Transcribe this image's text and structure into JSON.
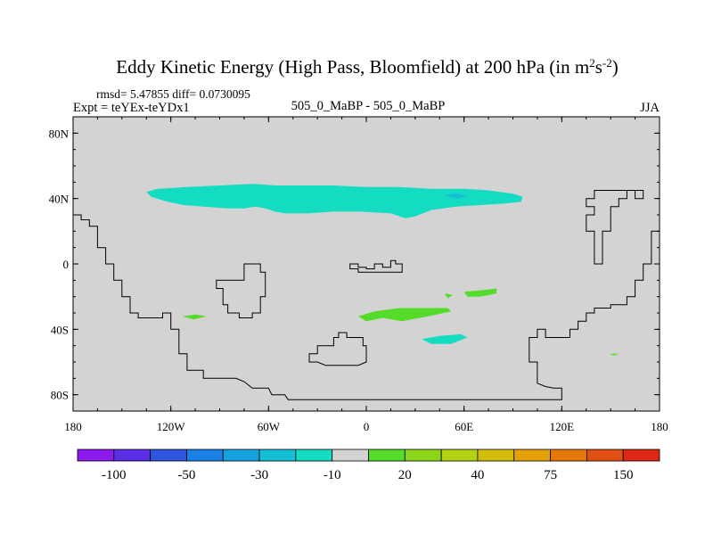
{
  "chart_data": {
    "type": "heatmap",
    "title": {
      "main": "Eddy Kinetic Energy (High Pass, Bloomfield) at 200 hPa (in m",
      "units_a": "2",
      "units_mid": "s",
      "units_b": "-2",
      "close": ")"
    },
    "stats_line": "rmsd= 5.47855 diff= 0.0730095",
    "experiment": "Expt = teYEx-teYDx1",
    "comparison": "505_0_MaBP - 505_0_MaBP",
    "season": "JJA",
    "projection": "cylindrical-equidistant",
    "xlim": [
      -180,
      180
    ],
    "ylim": [
      -90,
      90
    ],
    "x_ticks": [
      {
        "value": -180,
        "label": "180"
      },
      {
        "value": -120,
        "label": "120W"
      },
      {
        "value": -60,
        "label": "60W"
      },
      {
        "value": 0,
        "label": "0"
      },
      {
        "value": 60,
        "label": "60E"
      },
      {
        "value": 120,
        "label": "120E"
      },
      {
        "value": 180,
        "label": "180"
      }
    ],
    "y_ticks": [
      {
        "value": 80,
        "label": "80N"
      },
      {
        "value": 40,
        "label": "40N"
      },
      {
        "value": 0,
        "label": "0"
      },
      {
        "value": -40,
        "label": "40S"
      },
      {
        "value": -80,
        "label": "80S"
      }
    ],
    "background_color": "#d3d3d3",
    "colorbar": {
      "colors": [
        "#8c1aef",
        "#5a2de6",
        "#2d55e0",
        "#1a80e6",
        "#14a3e0",
        "#14bed6",
        "#14dcc3",
        "#d3d3d3",
        "#55dc28",
        "#8cd61a",
        "#b4d214",
        "#d2be0a",
        "#e6a00a",
        "#e6780a",
        "#e05014",
        "#dc2814"
      ],
      "labels": [
        {
          "boundary": 1,
          "text": "-100"
        },
        {
          "boundary": 3,
          "text": "-50"
        },
        {
          "boundary": 5,
          "text": "-30"
        },
        {
          "boundary": 7,
          "text": "-10"
        },
        {
          "boundary": 9,
          "text": "20"
        },
        {
          "boundary": 11,
          "text": "40"
        },
        {
          "boundary": 13,
          "text": "75"
        },
        {
          "boundary": 15,
          "text": "150"
        }
      ]
    },
    "anomaly_regions": [
      {
        "name": "northern-midlatitude-band",
        "bin": "-10 to -5",
        "color": "#14dcc3",
        "lonlat": [
          [
            -135,
            44
          ],
          [
            -128,
            46
          ],
          [
            -110,
            47
          ],
          [
            -90,
            48
          ],
          [
            -70,
            49
          ],
          [
            -55,
            48
          ],
          [
            -40,
            48
          ],
          [
            -20,
            48
          ],
          [
            0,
            47
          ],
          [
            20,
            47
          ],
          [
            40,
            46
          ],
          [
            60,
            46
          ],
          [
            75,
            45
          ],
          [
            90,
            43
          ],
          [
            96,
            41
          ],
          [
            95,
            38
          ],
          [
            85,
            37
          ],
          [
            70,
            36
          ],
          [
            55,
            35
          ],
          [
            40,
            33
          ],
          [
            30,
            29
          ],
          [
            24,
            28
          ],
          [
            15,
            31
          ],
          [
            -5,
            32
          ],
          [
            -20,
            32
          ],
          [
            -35,
            31
          ],
          [
            -50,
            31
          ],
          [
            -56,
            32
          ],
          [
            -62,
            34
          ],
          [
            -68,
            35
          ],
          [
            -75,
            34
          ],
          [
            -85,
            34
          ],
          [
            -100,
            35
          ],
          [
            -112,
            36
          ],
          [
            -122,
            38
          ],
          [
            -132,
            41
          ]
        ]
      },
      {
        "name": "northern-band-core",
        "bin": "-30 to -10",
        "color": "#14bed6",
        "lonlat": [
          [
            48,
            42
          ],
          [
            55,
            43
          ],
          [
            62,
            42
          ],
          [
            56,
            40
          ]
        ]
      },
      {
        "name": "south-atlantic-patch",
        "bin": "5 to 20",
        "color": "#55dc28",
        "lonlat": [
          [
            -5,
            -32
          ],
          [
            5,
            -29
          ],
          [
            20,
            -27
          ],
          [
            35,
            -27
          ],
          [
            50,
            -27
          ],
          [
            52,
            -29
          ],
          [
            38,
            -32
          ],
          [
            22,
            -35
          ],
          [
            10,
            -33
          ],
          [
            0,
            -35
          ]
        ]
      },
      {
        "name": "south-indian-patch",
        "bin": "5 to 20",
        "color": "#55dc28",
        "lonlat": [
          [
            60,
            -17
          ],
          [
            72,
            -16
          ],
          [
            80,
            -15
          ],
          [
            80,
            -18
          ],
          [
            70,
            -20
          ],
          [
            62,
            -20
          ]
        ]
      },
      {
        "name": "small-patch-near-50e",
        "bin": "5 to 20",
        "color": "#55dc28",
        "lonlat": [
          [
            48,
            -18
          ],
          [
            53,
            -19
          ],
          [
            50,
            -21
          ]
        ]
      },
      {
        "name": "south-pacific-patch",
        "bin": "5 to 20",
        "color": "#55dc28",
        "lonlat": [
          [
            -113,
            -32
          ],
          [
            -105,
            -31
          ],
          [
            -98,
            -32
          ],
          [
            -106,
            -34
          ]
        ]
      },
      {
        "name": "southern-ocean-patch",
        "bin": "-10 to -5",
        "color": "#14dcc3",
        "lonlat": [
          [
            34,
            -46
          ],
          [
            45,
            -44
          ],
          [
            58,
            -43
          ],
          [
            62,
            -45
          ],
          [
            52,
            -49
          ],
          [
            40,
            -49
          ]
        ]
      },
      {
        "name": "far-southeast-dot",
        "bin": "5 to 20",
        "color": "#55dc28",
        "lonlat": [
          [
            149,
            -55
          ],
          [
            155,
            -55
          ],
          [
            152,
            -56
          ]
        ]
      }
    ],
    "coastlines": [
      {
        "name": "west-continent-outline",
        "lonlat": [
          [
            -180,
            30
          ],
          [
            -175,
            30
          ],
          [
            -175,
            27
          ],
          [
            -170,
            27
          ],
          [
            -170,
            23
          ],
          [
            -165,
            23
          ],
          [
            -165,
            10
          ],
          [
            -160,
            10
          ],
          [
            -160,
            0
          ],
          [
            -155,
            0
          ],
          [
            -155,
            -10
          ],
          [
            -150,
            -10
          ],
          [
            -150,
            -20
          ],
          [
            -145,
            -20
          ],
          [
            -145,
            -30
          ],
          [
            -140,
            -30
          ],
          [
            -140,
            -33
          ],
          [
            -130,
            -33
          ],
          [
            -125,
            -33
          ],
          [
            -125,
            -30
          ],
          [
            -120,
            -30
          ],
          [
            -120,
            -40
          ],
          [
            -115,
            -40
          ],
          [
            -115,
            -55
          ],
          [
            -110,
            -55
          ],
          [
            -110,
            -65
          ],
          [
            -100,
            -65
          ],
          [
            -100,
            -70
          ],
          [
            -80,
            -70
          ],
          [
            -75,
            -72
          ],
          [
            -70,
            -76
          ],
          [
            -60,
            -76
          ],
          [
            -58,
            -80
          ],
          [
            -50,
            -80
          ],
          [
            -48,
            -83
          ],
          [
            0,
            -83
          ],
          [
            120,
            -83
          ],
          [
            120,
            -76
          ],
          [
            115,
            -76
          ],
          [
            110,
            -75
          ],
          [
            105,
            -73
          ],
          [
            105,
            -60
          ],
          [
            100,
            -60
          ],
          [
            100,
            -45
          ],
          [
            105,
            -45
          ],
          [
            105,
            -40
          ],
          [
            110,
            -40
          ],
          [
            110,
            -45
          ],
          [
            125,
            -45
          ],
          [
            125,
            -40
          ],
          [
            130,
            -40
          ],
          [
            130,
            -35
          ],
          [
            135,
            -35
          ],
          [
            135,
            -30
          ],
          [
            140,
            -30
          ],
          [
            140,
            -27
          ],
          [
            150,
            -27
          ],
          [
            150,
            -25
          ],
          [
            160,
            -25
          ],
          [
            160,
            -20
          ],
          [
            165,
            -20
          ],
          [
            165,
            -10
          ],
          [
            170,
            -10
          ],
          [
            170,
            0
          ],
          [
            175,
            0
          ],
          [
            175,
            20
          ],
          [
            180,
            20
          ]
        ]
      },
      {
        "name": "south-pacific-island-outline",
        "lonlat": [
          [
            -92,
            -10
          ],
          [
            -92,
            -15
          ],
          [
            -88,
            -15
          ],
          [
            -88,
            -25
          ],
          [
            -85,
            -25
          ],
          [
            -85,
            -30
          ],
          [
            -78,
            -30
          ],
          [
            -78,
            -33
          ],
          [
            -70,
            -33
          ],
          [
            -70,
            -30
          ],
          [
            -65,
            -30
          ],
          [
            -65,
            -20
          ],
          [
            -62,
            -20
          ],
          [
            -62,
            -5
          ],
          [
            -65,
            -5
          ],
          [
            -65,
            0
          ],
          [
            -75,
            0
          ],
          [
            -75,
            -10
          ]
        ]
      },
      {
        "name": "equatorial-small-outline",
        "lonlat": [
          [
            -10,
            0
          ],
          [
            -5,
            0
          ],
          [
            -5,
            -2
          ],
          [
            0,
            -2
          ],
          [
            0,
            -3
          ],
          [
            5,
            -3
          ],
          [
            5,
            0
          ],
          [
            10,
            0
          ],
          [
            10,
            -2
          ],
          [
            15,
            -2
          ],
          [
            15,
            2
          ],
          [
            18,
            2
          ],
          [
            18,
            0
          ],
          [
            22,
            0
          ],
          [
            22,
            -5
          ],
          [
            15,
            -5
          ],
          [
            10,
            -5
          ],
          [
            5,
            -5
          ],
          [
            0,
            -5
          ],
          [
            -5,
            -5
          ],
          [
            -5,
            -3
          ],
          [
            -10,
            -3
          ]
        ]
      },
      {
        "name": "south-atlantic-island-outline",
        "lonlat": [
          [
            -35,
            -55
          ],
          [
            -35,
            -60
          ],
          [
            -30,
            -60
          ],
          [
            -25,
            -62
          ],
          [
            -5,
            -62
          ],
          [
            0,
            -60
          ],
          [
            0,
            -50
          ],
          [
            -2,
            -50
          ],
          [
            -2,
            -45
          ],
          [
            -12,
            -45
          ],
          [
            -12,
            -42
          ],
          [
            -17,
            -42
          ],
          [
            -17,
            -45
          ],
          [
            -20,
            -45
          ],
          [
            -20,
            -50
          ],
          [
            -30,
            -50
          ],
          [
            -30,
            -55
          ]
        ]
      },
      {
        "name": "northeast-inlet-outline",
        "lonlat": [
          [
            140,
            45
          ],
          [
            140,
            40
          ],
          [
            135,
            40
          ],
          [
            135,
            35
          ],
          [
            140,
            35
          ],
          [
            140,
            30
          ],
          [
            135,
            30
          ],
          [
            135,
            20
          ],
          [
            140,
            20
          ],
          [
            140,
            0
          ],
          [
            145,
            0
          ],
          [
            145,
            20
          ],
          [
            150,
            20
          ],
          [
            150,
            35
          ],
          [
            155,
            35
          ],
          [
            155,
            40
          ],
          [
            160,
            40
          ],
          [
            160,
            45
          ],
          [
            165,
            45
          ],
          [
            165,
            40
          ],
          [
            170,
            40
          ],
          [
            170,
            45
          ],
          [
            150,
            45
          ]
        ]
      }
    ]
  }
}
